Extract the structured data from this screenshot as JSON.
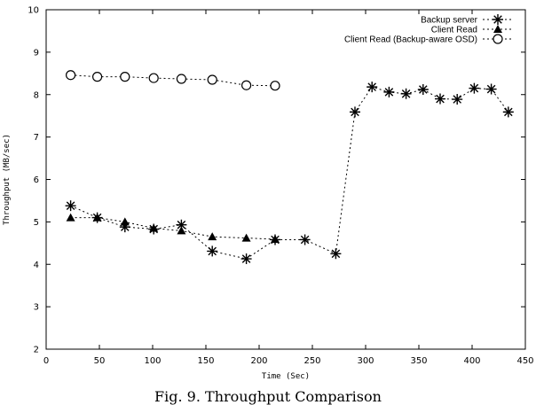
{
  "caption": "Fig. 9.   Throughput Comparison",
  "chart_data": {
    "type": "line",
    "title": "",
    "xlabel": "Time (Sec)",
    "ylabel": "Throughput (MB/sec)",
    "xlim": [
      0,
      450
    ],
    "ylim": [
      2,
      10
    ],
    "xticks": [
      0,
      50,
      100,
      150,
      200,
      250,
      300,
      350,
      400,
      450
    ],
    "yticks": [
      2,
      3,
      4,
      5,
      6,
      7,
      8,
      9,
      10
    ],
    "grid": false,
    "legend_position": "top-right",
    "series": [
      {
        "name": "Backup server",
        "marker": "asterisk",
        "color": "#000000",
        "x": [
          23,
          48,
          74,
          101,
          127,
          156,
          188,
          215,
          243,
          272,
          290,
          306,
          322,
          338,
          354,
          370,
          386,
          402,
          418,
          434
        ],
        "y": [
          5.38,
          5.1,
          4.88,
          4.83,
          4.93,
          4.31,
          4.13,
          4.58,
          4.58,
          4.25,
          7.59,
          8.18,
          8.06,
          8.02,
          8.12,
          7.9,
          7.89,
          8.15,
          8.13,
          7.59
        ]
      },
      {
        "name": "Client Read",
        "marker": "triangle",
        "color": "#000000",
        "x": [
          23,
          48,
          74,
          101,
          127,
          156,
          188,
          215
        ],
        "y": [
          5.1,
          5.1,
          5.0,
          4.85,
          4.79,
          4.65,
          4.62,
          4.59
        ]
      },
      {
        "name": "Client Read (Backup-aware OSD)",
        "marker": "circle",
        "color": "#000000",
        "x": [
          23,
          48,
          74,
          101,
          127,
          156,
          188,
          215
        ],
        "y": [
          8.46,
          8.42,
          8.42,
          8.39,
          8.37,
          8.35,
          8.22,
          8.21
        ]
      }
    ]
  }
}
